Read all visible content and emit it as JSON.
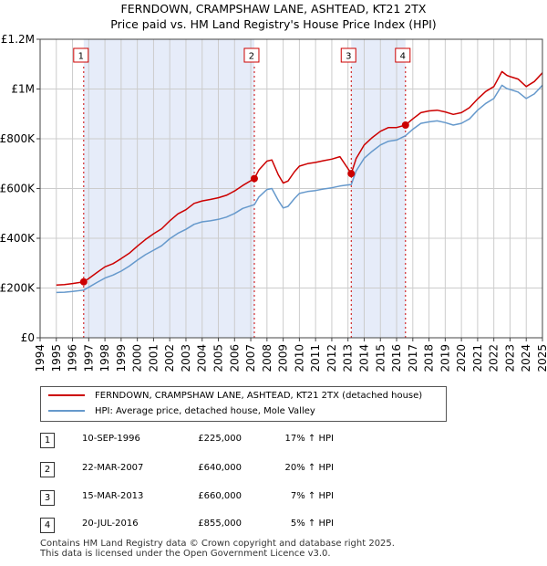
{
  "title_line1": "FERNDOWN, CRAMPSHAW LANE, ASHTEAD, KT21 2TX",
  "title_line2": "Price paid vs. HM Land Registry's House Price Index (HPI)",
  "chart_data": {
    "type": "line",
    "title": "FERNDOWN, CRAMPSHAW LANE, ASHTEAD, KT21 2TX",
    "subtitle": "Price paid vs. HM Land Registry's House Price Index (HPI)",
    "xlabel": "",
    "ylabel": "",
    "xlim": [
      1994.0,
      2025.0
    ],
    "ylim": [
      0,
      1200000
    ],
    "x_ticks": [
      1994,
      1995,
      1996,
      1997,
      1998,
      1999,
      2000,
      2001,
      2002,
      2003,
      2004,
      2005,
      2006,
      2007,
      2008,
      2009,
      2010,
      2011,
      2012,
      2013,
      2014,
      2015,
      2016,
      2017,
      2018,
      2019,
      2020,
      2021,
      2022,
      2023,
      2024,
      2025
    ],
    "y_ticks": [
      {
        "value": 0,
        "label": "£0"
      },
      {
        "value": 200000,
        "label": "£200K"
      },
      {
        "value": 400000,
        "label": "£400K"
      },
      {
        "value": 600000,
        "label": "£600K"
      },
      {
        "value": 800000,
        "label": "£800K"
      },
      {
        "value": 1000000,
        "label": "£1M"
      },
      {
        "value": 1200000,
        "label": "£1.2M"
      }
    ],
    "grid": true,
    "shaded_spans": [
      [
        1996.69,
        2007.22
      ],
      [
        2013.2,
        2016.55
      ]
    ],
    "series": [
      {
        "name": "FERNDOWN, CRAMPSHAW LANE, ASHTEAD, KT21 2TX (detached house)",
        "color": "#cc0000",
        "x": [
          1995.0,
          1995.5,
          1996.0,
          1996.69,
          1997.0,
          1997.5,
          1998.0,
          1998.5,
          1999.0,
          1999.5,
          2000.0,
          2000.5,
          2001.0,
          2001.5,
          2002.0,
          2002.5,
          2003.0,
          2003.5,
          2004.0,
          2004.5,
          2005.0,
          2005.5,
          2006.0,
          2006.5,
          2007.22,
          2007.5,
          2008.0,
          2008.3,
          2008.7,
          2009.0,
          2009.3,
          2009.7,
          2010.0,
          2010.5,
          2011.0,
          2011.5,
          2012.0,
          2012.5,
          2013.2,
          2013.5,
          2014.0,
          2014.5,
          2015.0,
          2015.5,
          2016.0,
          2016.55,
          2017.0,
          2017.5,
          2018.0,
          2018.5,
          2019.0,
          2019.5,
          2020.0,
          2020.5,
          2021.0,
          2021.5,
          2022.0,
          2022.5,
          2022.8,
          2023.0,
          2023.5,
          2024.0,
          2024.5,
          2025.0
        ],
        "values": [
          212000,
          214000,
          218000,
          225000,
          238000,
          262000,
          285000,
          298000,
          318000,
          340000,
          368000,
          395000,
          418000,
          438000,
          470000,
          498000,
          515000,
          540000,
          550000,
          556000,
          563000,
          573000,
          590000,
          612000,
          640000,
          675000,
          710000,
          715000,
          655000,
          622000,
          630000,
          668000,
          690000,
          700000,
          705000,
          712000,
          718000,
          728000,
          660000,
          720000,
          775000,
          805000,
          830000,
          845000,
          845000,
          855000,
          880000,
          905000,
          912000,
          915000,
          908000,
          898000,
          905000,
          925000,
          960000,
          990000,
          1010000,
          1070000,
          1055000,
          1050000,
          1040000,
          1010000,
          1030000,
          1065000
        ]
      },
      {
        "name": "HPI: Average price, detached house, Mole Valley",
        "color": "#6699cc",
        "x": [
          1995.0,
          1995.5,
          1996.0,
          1996.69,
          1997.0,
          1997.5,
          1998.0,
          1998.5,
          1999.0,
          1999.5,
          2000.0,
          2000.5,
          2001.0,
          2001.5,
          2002.0,
          2002.5,
          2003.0,
          2003.5,
          2004.0,
          2004.5,
          2005.0,
          2005.5,
          2006.0,
          2006.5,
          2007.22,
          2007.5,
          2008.0,
          2008.3,
          2008.7,
          2009.0,
          2009.3,
          2009.7,
          2010.0,
          2010.5,
          2011.0,
          2011.5,
          2012.0,
          2012.5,
          2013.2,
          2013.5,
          2014.0,
          2014.5,
          2015.0,
          2015.5,
          2016.0,
          2016.55,
          2017.0,
          2017.5,
          2018.0,
          2018.5,
          2019.0,
          2019.5,
          2020.0,
          2020.5,
          2021.0,
          2021.5,
          2022.0,
          2022.5,
          2022.8,
          2023.0,
          2023.5,
          2024.0,
          2024.5,
          2025.0
        ],
        "values": [
          182000,
          183000,
          186000,
          192000,
          203000,
          222000,
          240000,
          252000,
          268000,
          288000,
          312000,
          334000,
          352000,
          370000,
          398000,
          420000,
          436000,
          456000,
          466000,
          470000,
          476000,
          485000,
          500000,
          520000,
          535000,
          566000,
          596000,
          600000,
          552000,
          522000,
          528000,
          560000,
          580000,
          588000,
          592000,
          598000,
          603000,
          610000,
          616000,
          670000,
          722000,
          750000,
          775000,
          790000,
          795000,
          812000,
          838000,
          862000,
          868000,
          872000,
          865000,
          855000,
          862000,
          880000,
          915000,
          942000,
          962000,
          1015000,
          1002000,
          998000,
          988000,
          962000,
          980000,
          1015000
        ]
      }
    ],
    "markers": [
      {
        "label": "1",
        "x": 1996.69,
        "value": 225000
      },
      {
        "label": "2",
        "x": 2007.22,
        "value": 640000
      },
      {
        "label": "3",
        "x": 2013.2,
        "value": 660000
      },
      {
        "label": "4",
        "x": 2016.55,
        "value": 855000
      }
    ]
  },
  "legend": {
    "items": [
      {
        "label": "FERNDOWN, CRAMPSHAW LANE, ASHTEAD, KT21 2TX (detached house)",
        "color": "#cc0000"
      },
      {
        "label": "HPI: Average price, detached house, Mole Valley",
        "color": "#6699cc"
      }
    ]
  },
  "transactions": [
    {
      "num": "1",
      "date": "10-SEP-1996",
      "price": "£225,000",
      "hpi": "17% ↑ HPI"
    },
    {
      "num": "2",
      "date": "22-MAR-2007",
      "price": "£640,000",
      "hpi": "20% ↑ HPI"
    },
    {
      "num": "3",
      "date": "15-MAR-2013",
      "price": "£660,000",
      "hpi": "7% ↑ HPI"
    },
    {
      "num": "4",
      "date": "20-JUL-2016",
      "price": "£855,000",
      "hpi": "5% ↑ HPI"
    }
  ],
  "footer": {
    "line1": "Contains HM Land Registry data © Crown copyright and database right 2025.",
    "line2": "This data is licensed under the Open Government Licence v3.0."
  }
}
